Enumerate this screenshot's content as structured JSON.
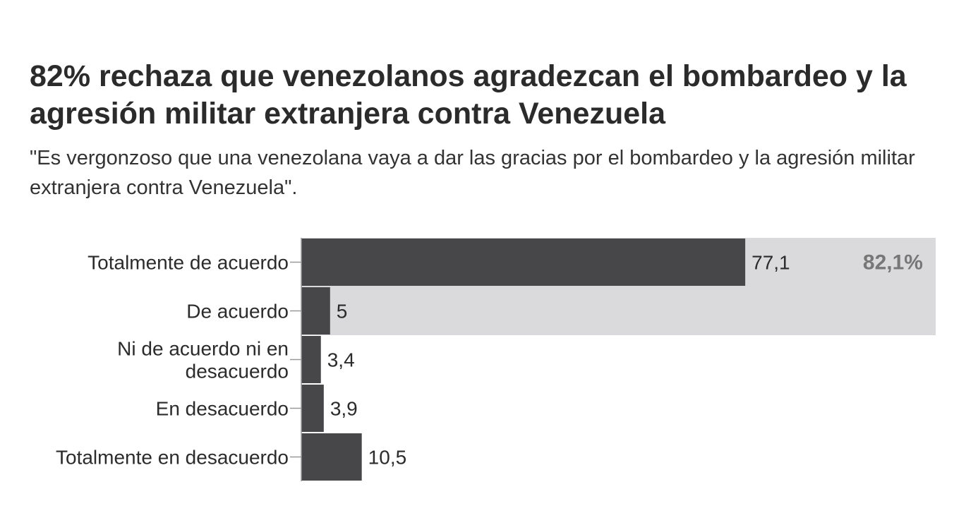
{
  "chart_data": {
    "type": "bar",
    "orientation": "horizontal",
    "title": "82% rechaza que venezolanos agradezcan el bombardeo y la agresión militar extranjera contra Venezuela",
    "subtitle": "\"Es vergonzoso que una venezolana vaya a dar las gracias por el bombardeo y la agresión militar extranjera contra Venezuela\".",
    "categories": [
      [
        "Totalmente de acuerdo"
      ],
      [
        "De acuerdo"
      ],
      [
        "Ni de acuerdo ni en",
        "desacuerdo"
      ],
      [
        "En desacuerdo"
      ],
      [
        "Totalmente en desacuerdo"
      ]
    ],
    "values": [
      77.1,
      5,
      3.4,
      3.9,
      10.5
    ],
    "value_labels": [
      "77,1",
      "5",
      "3,4",
      "3,9",
      "10,5"
    ],
    "highlight": {
      "label": "82,1%",
      "covers_categories": [
        0,
        1
      ],
      "value": 82.1
    },
    "xlim": [
      0,
      100
    ],
    "colors": {
      "bar": "#47474a",
      "highlight_band": "#dadadc",
      "axis": "#999999",
      "highlight_text": "#777777"
    },
    "xlabel": "",
    "ylabel": ""
  }
}
